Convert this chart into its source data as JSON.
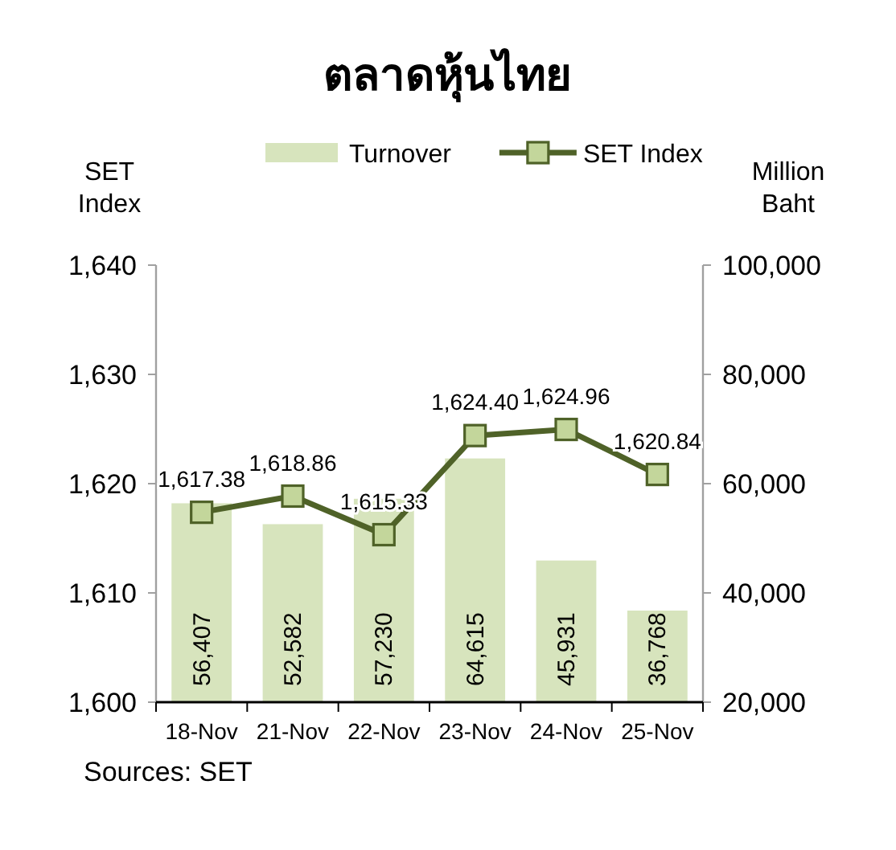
{
  "chart_data": {
    "type": "bar",
    "title": "ตลาดหุ้นไทย",
    "ylabel": "SET Index",
    "y2label": "Million Baht",
    "categories": [
      "18-Nov",
      "21-Nov",
      "22-Nov",
      "23-Nov",
      "24-Nov",
      "25-Nov"
    ],
    "series": [
      {
        "name": "Turnover",
        "axis": "y2",
        "color": "#d7e4bd",
        "values": [
          56407,
          52582,
          57230,
          64615,
          45931,
          36768
        ],
        "value_labels": [
          "56,407",
          "52,582",
          "57,230",
          "64,615",
          "45,931",
          "36,768"
        ]
      },
      {
        "name": "SET Index",
        "type": "line",
        "color": "#4f6228",
        "values": [
          1617.38,
          1618.86,
          1615.33,
          1624.4,
          1624.96,
          1620.84
        ],
        "value_labels": [
          "1,617.38",
          "1,618.86",
          "1,615.33",
          "1,624.40",
          "1,624.96",
          "1,620.84"
        ]
      }
    ],
    "marker": "square",
    "legend": "top",
    "ylim": [
      1600,
      1640
    ],
    "yticks": [
      {
        "value": 1600,
        "label": "1,600"
      },
      {
        "value": 1610,
        "label": "1,610"
      },
      {
        "value": 1620,
        "label": "1,620"
      },
      {
        "value": 1630,
        "label": "1,630"
      },
      {
        "value": 1640,
        "label": "1,640"
      }
    ],
    "y2lim": [
      20000,
      100000
    ],
    "y2ticks": [
      {
        "value": 20000,
        "label": "20,000"
      },
      {
        "value": 40000,
        "label": "40,000"
      },
      {
        "value": 60000,
        "label": "60,000"
      },
      {
        "value": 80000,
        "label": "80,000"
      },
      {
        "value": 100000,
        "label": "100,000"
      }
    ],
    "annotations": [
      "Sources: SET"
    ]
  }
}
